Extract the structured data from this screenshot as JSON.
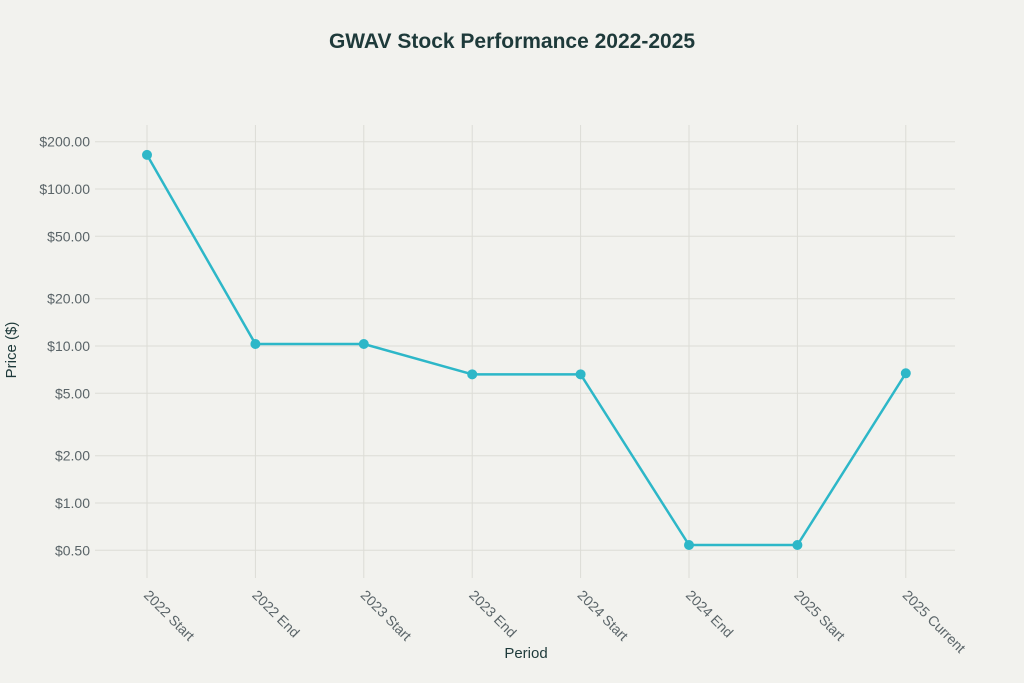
{
  "chart_data": {
    "type": "line",
    "title": "GWAV Stock Performance 2022-2025",
    "xlabel": "Period",
    "ylabel": "Price ($)",
    "yscale": "log",
    "ylim": [
      0.4,
      260
    ],
    "yticks": [
      0.5,
      1,
      2,
      5,
      10,
      20,
      50,
      100,
      200
    ],
    "ytick_labels": [
      "$0.50",
      "$1.00",
      "$2.00",
      "$5.00",
      "$10.00",
      "$20.00",
      "$50.00",
      "$100.00",
      "$200.00"
    ],
    "categories": [
      "2022 Start",
      "2022 End",
      "2023 Start",
      "2023 End",
      "2024 Start",
      "2024 End",
      "2025 Start",
      "2025 Current"
    ],
    "values": [
      165,
      10.3,
      10.3,
      6.6,
      6.6,
      0.54,
      0.54,
      6.7
    ],
    "grid": true,
    "legend": "none",
    "color": "#2db7c8"
  }
}
